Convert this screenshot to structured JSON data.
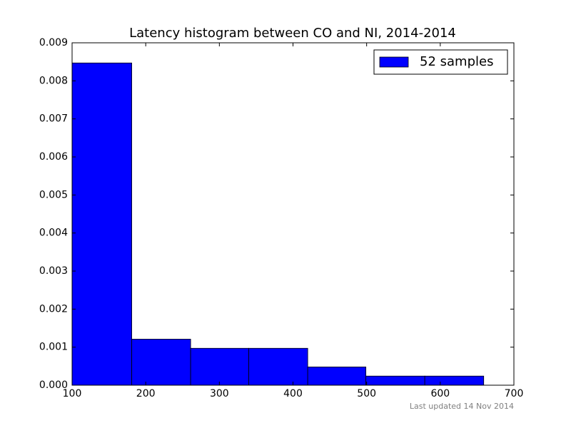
{
  "chart_data": {
    "type": "histogram",
    "title": "Latency histogram between CO and NI, 2014-2014",
    "bins": [
      100,
      181,
      261,
      340,
      420,
      499,
      579,
      659
    ],
    "series": [
      {
        "name": "52 samples",
        "color": "#0000ff",
        "values": [
          0.00847,
          0.00121,
          0.00097,
          0.00097,
          0.00048,
          0.00024,
          0.00024
        ]
      }
    ],
    "xlim": [
      100,
      700
    ],
    "xticks": [
      100,
      200,
      300,
      400,
      500,
      600,
      700
    ],
    "ylim": [
      0,
      0.009
    ],
    "yticks": [
      {
        "value": 0,
        "label": "0.000"
      },
      {
        "value": 0.001,
        "label": "0.001"
      },
      {
        "value": 0.002,
        "label": "0.002"
      },
      {
        "value": 0.003,
        "label": "0.003"
      },
      {
        "value": 0.004,
        "label": "0.004"
      },
      {
        "value": 0.005,
        "label": "0.005"
      },
      {
        "value": 0.006,
        "label": "0.006"
      },
      {
        "value": 0.007,
        "label": "0.007"
      },
      {
        "value": 0.008,
        "label": "0.008"
      },
      {
        "value": 0.009,
        "label": "0.009"
      }
    ],
    "legend": "upper right",
    "annotation": "Last updated 14 Nov 2014"
  }
}
